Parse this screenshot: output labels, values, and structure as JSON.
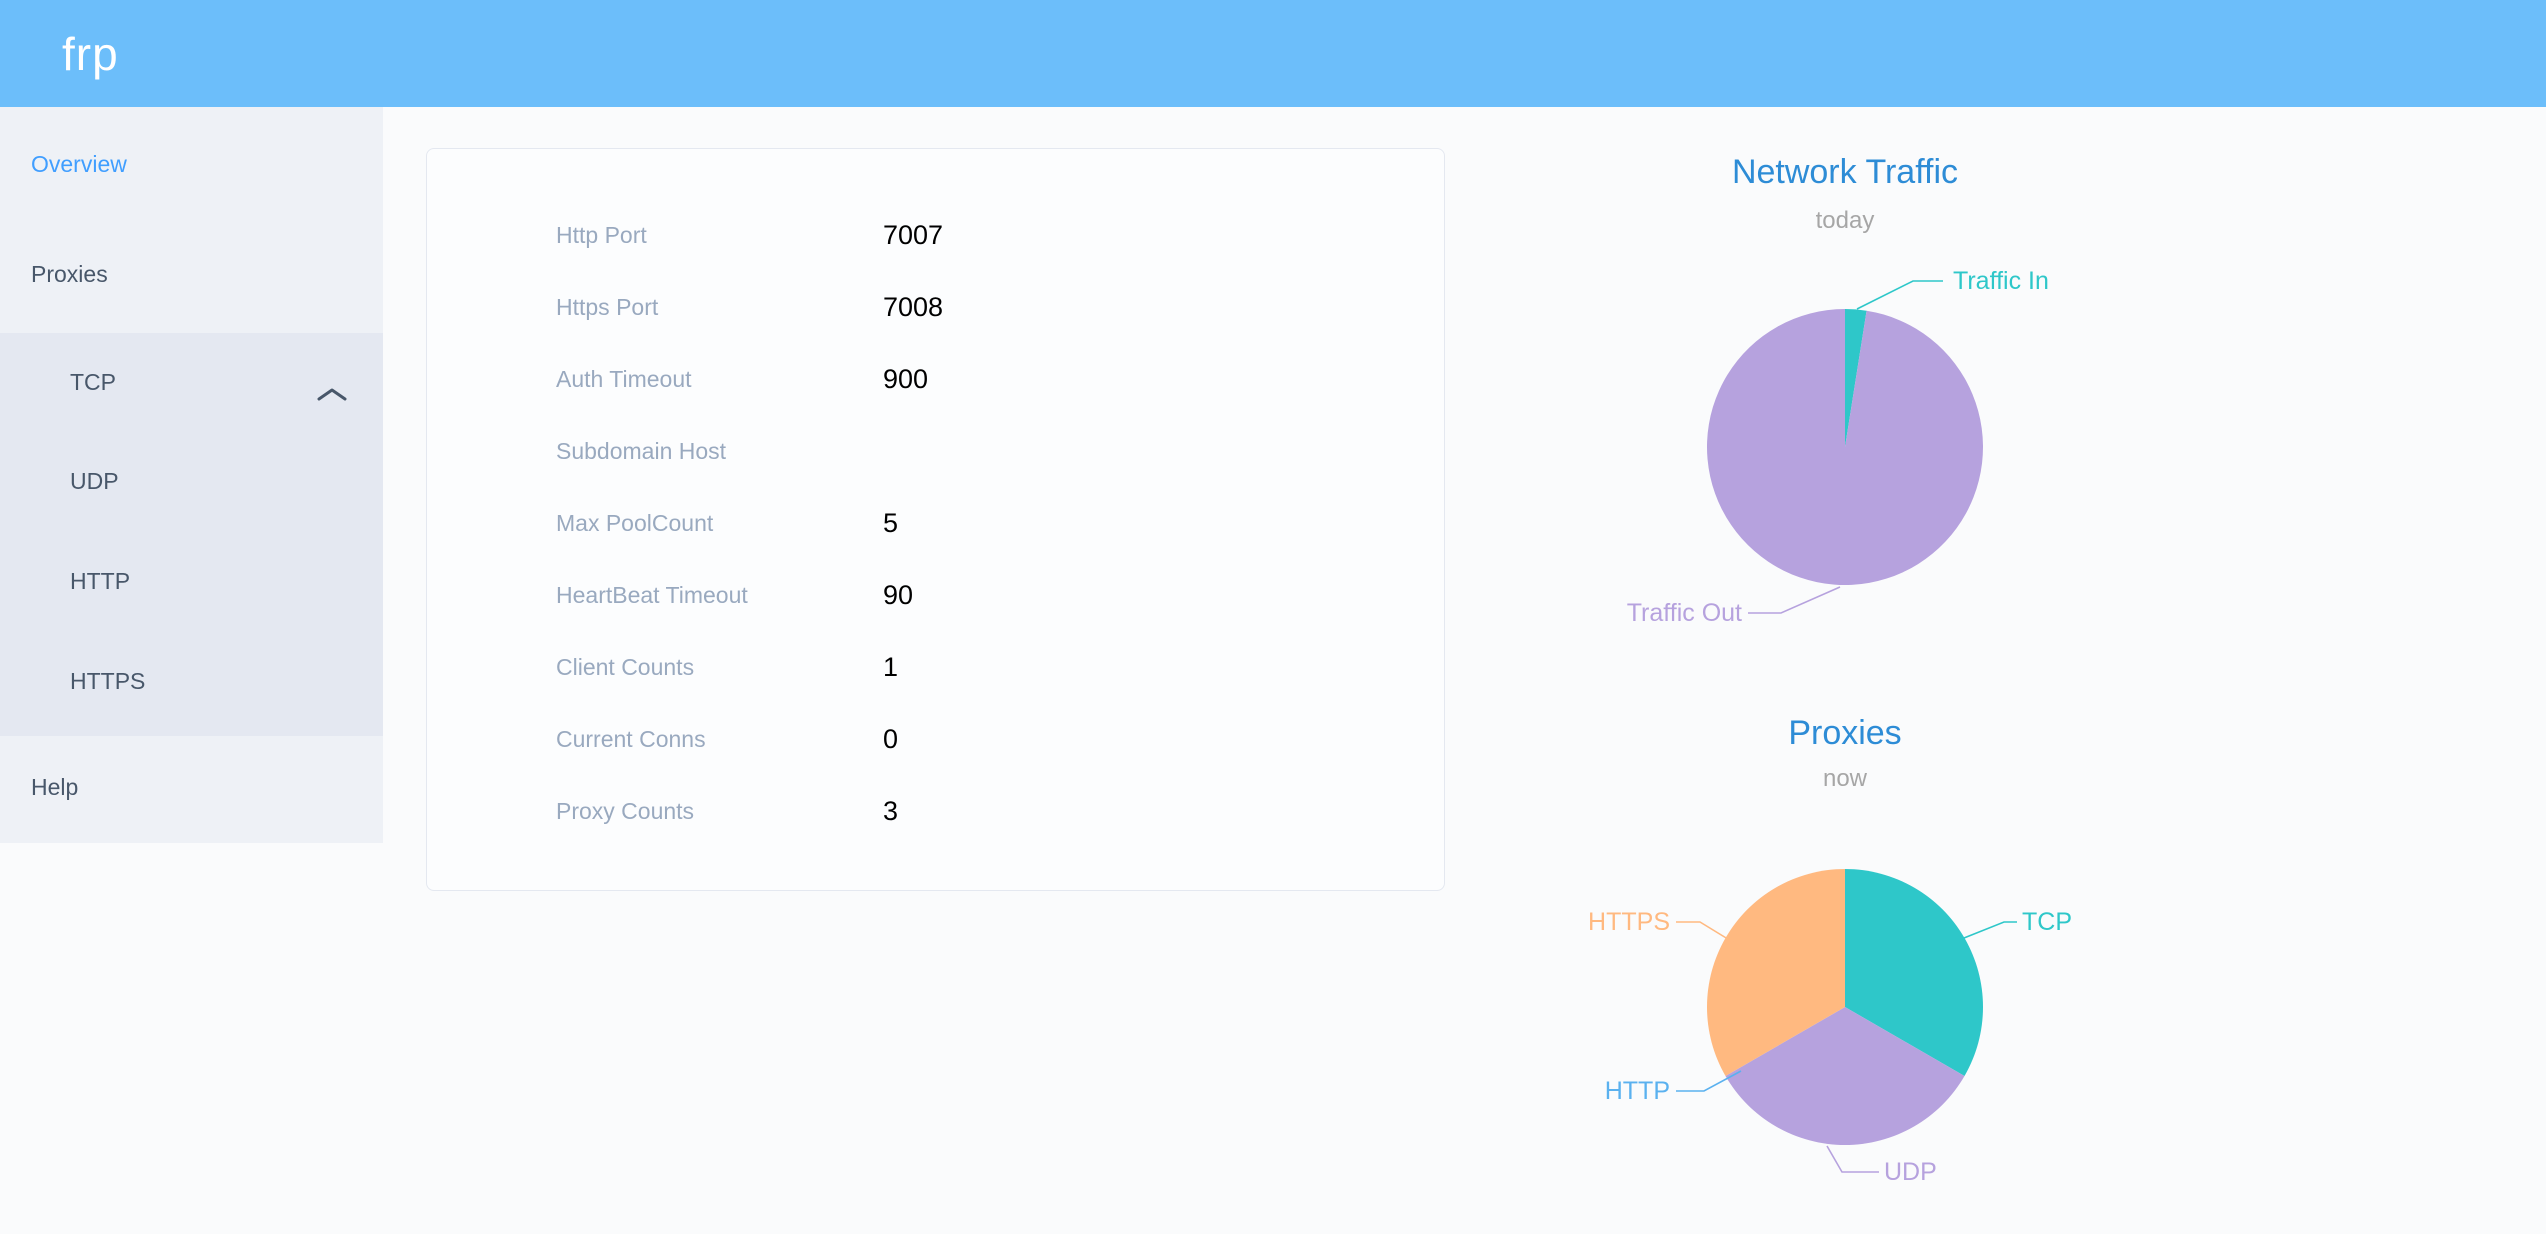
{
  "palette": {
    "header_bg": "#6cbefa",
    "logo_color": "#ffffff",
    "sidebar_bg": "#eef1f6",
    "submenu_bg": "#e4e8f1",
    "menu_text": "#48576a",
    "active_menu_color": "#409eff",
    "chart_title_color": "#2d8cd6",
    "chart_subtitle_color": "#a6a6a6",
    "card_label_color": "#99a9bf",
    "card_value_color": "#000000"
  },
  "header": {
    "logo_text": "frp"
  },
  "sidebar": {
    "items": [
      {
        "label": "Overview",
        "active": true
      },
      {
        "label": "Proxies",
        "expanded": true
      },
      {
        "label": "TCP"
      },
      {
        "label": "UDP"
      },
      {
        "label": "HTTP"
      },
      {
        "label": "HTTPS"
      },
      {
        "label": "Help"
      }
    ]
  },
  "server_info": {
    "rows": [
      {
        "label": "Http Port",
        "value": "7007"
      },
      {
        "label": "Https Port",
        "value": "7008"
      },
      {
        "label": "Auth Timeout",
        "value": "900"
      },
      {
        "label": "Subdomain Host",
        "value": ""
      },
      {
        "label": "Max PoolCount",
        "value": "5"
      },
      {
        "label": "HeartBeat Timeout",
        "value": "90"
      },
      {
        "label": "Client Counts",
        "value": "1"
      },
      {
        "label": "Current Conns",
        "value": "0"
      },
      {
        "label": "Proxy Counts",
        "value": "3"
      }
    ]
  },
  "chart_data": [
    {
      "type": "pie",
      "title": "Network Traffic",
      "subtitle": "today",
      "units": "percent (estimated from slice angles, no numeric labels shown)",
      "legend_position": "callout-labels",
      "slices": [
        {
          "label": "Traffic In",
          "value": 2.5,
          "color": "#2ec7c9"
        },
        {
          "label": "Traffic Out",
          "value": 97.5,
          "color": "#b6a2de"
        }
      ]
    },
    {
      "type": "pie",
      "title": "Proxies",
      "subtitle": "now",
      "units": "proxy count (total matches Proxy Counts = 3; HTTP slice is zero-width)",
      "legend_position": "callout-labels",
      "slices": [
        {
          "label": "TCP",
          "value": 1,
          "color": "#2ec7c9"
        },
        {
          "label": "UDP",
          "value": 1,
          "color": "#b6a2de"
        },
        {
          "label": "HTTP",
          "value": 0,
          "color": "#5ab1ef"
        },
        {
          "label": "HTTPS",
          "value": 1,
          "color": "#ffb980"
        }
      ]
    }
  ]
}
